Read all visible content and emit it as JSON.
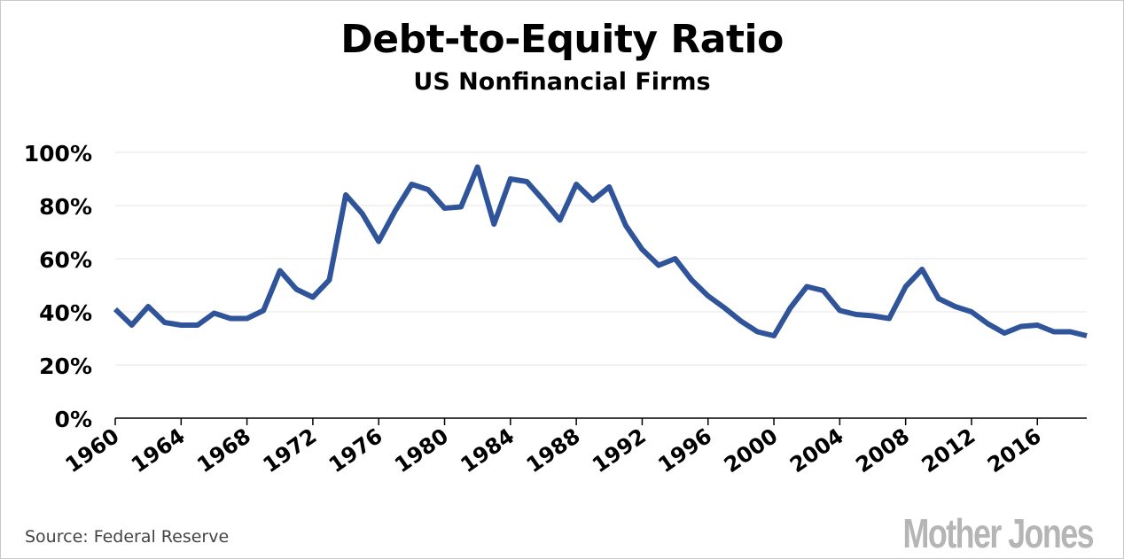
{
  "title": "Debt-to-Equity Ratio",
  "subtitle": "US Nonfinancial Firms",
  "source": "Source: Federal Reserve",
  "logo": "Mother Jones",
  "colors": {
    "line": "#30549a",
    "grid": "#e6e6e6",
    "axis": "#000000",
    "logo": "#b5b5b5"
  },
  "chart_data": {
    "type": "line",
    "x": [
      1960,
      1961,
      1962,
      1963,
      1964,
      1965,
      1966,
      1967,
      1968,
      1969,
      1970,
      1971,
      1972,
      1973,
      1974,
      1975,
      1976,
      1977,
      1978,
      1979,
      1980,
      1981,
      1982,
      1983,
      1984,
      1985,
      1986,
      1987,
      1988,
      1989,
      1990,
      1991,
      1992,
      1993,
      1994,
      1995,
      1996,
      1997,
      1998,
      1999,
      2000,
      2001,
      2002,
      2003,
      2004,
      2005,
      2006,
      2007,
      2008,
      2009,
      2010,
      2011,
      2012,
      2013,
      2014,
      2015,
      2016,
      2017,
      2018,
      2019
    ],
    "series": [
      {
        "values": [
          41,
          35,
          42,
          36,
          35,
          35,
          39.5,
          37.5,
          37.5,
          40.5,
          55.5,
          48.5,
          45.5,
          52,
          84,
          77,
          66.5,
          78,
          88,
          86,
          79,
          79.5,
          94.5,
          73,
          90,
          89,
          82,
          74.5,
          88,
          82,
          87,
          72.5,
          63.5,
          57.5,
          60,
          52,
          46,
          41.5,
          36.5,
          32.5,
          31,
          41.5,
          49.5,
          48,
          40.5,
          39,
          38.5,
          37.5,
          49.5,
          56,
          45,
          42,
          40,
          35.5,
          32,
          34.5,
          35,
          32.5,
          32.5,
          31
        ]
      }
    ],
    "xticks": [
      "1960",
      "1964",
      "1968",
      "1972",
      "1976",
      "1980",
      "1984",
      "1988",
      "1992",
      "1996",
      "2000",
      "2004",
      "2008",
      "2012",
      "2016"
    ],
    "xtick_years": [
      1960,
      1964,
      1968,
      1972,
      1976,
      1980,
      1984,
      1988,
      1992,
      1996,
      2000,
      2004,
      2008,
      2012,
      2016
    ],
    "yticks": [
      "0%",
      "20%",
      "40%",
      "60%",
      "80%",
      "100%"
    ],
    "ytick_values": [
      0,
      20,
      40,
      60,
      80,
      100
    ],
    "xlim": [
      1960,
      2019
    ],
    "ylim": [
      0,
      100
    ],
    "grid": "horizontal",
    "xlabel": "",
    "ylabel": ""
  }
}
